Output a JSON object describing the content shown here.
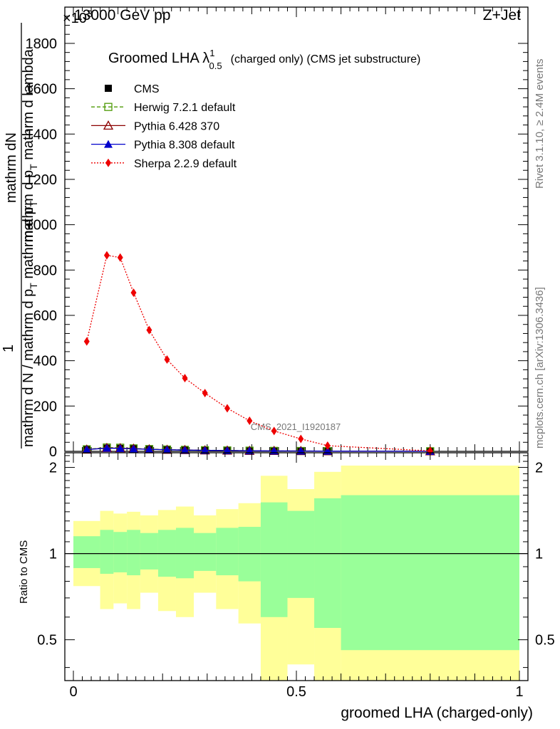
{
  "header": {
    "left": "13000 GeV pp",
    "right": "Z+Jet",
    "exponent": "×10",
    "exponent_power": "3"
  },
  "side_labels": {
    "rivet": "Rivet 3.1.10, ≥ 2.4M events",
    "mcplots": "mcplots.cern.ch [arXiv:1306.3436]"
  },
  "watermark": "CMS_2021_I1920187",
  "chart_data": [
    {
      "type": "line",
      "title": "Groomed LHA λ",
      "title_sup": "1",
      "title_sub": "0.5",
      "subtitle": "(charged only) (CMS jet substructure)",
      "ylabel_num": "mathrm dN",
      "ylabel_num2": "mathrm d p_T mathrm d lambda",
      "ylabel_num2_main": "mathrm d p",
      "ylabel_num2_sub": "T",
      "ylabel_num2_rest": " mathrm d lambda",
      "ylabel_one": "1",
      "ylabel_den": "mathrm d N / mathrm d p",
      "ylabel_den_sub": "T",
      "ylabel_den_rest": " mathrm d p",
      "ylabel_den_rest_sub": "T",
      "ylim": [
        0,
        1960
      ],
      "y_ticks": [
        "0",
        "200",
        "400",
        "600",
        "800",
        "1000",
        "1200",
        "1400",
        "1600",
        "1800"
      ],
      "y_tick_values": [
        0,
        200,
        400,
        600,
        800,
        1000,
        1200,
        1400,
        1600,
        1800
      ],
      "xlim": [
        0,
        1
      ],
      "x": [
        0.03,
        0.075,
        0.105,
        0.135,
        0.17,
        0.21,
        0.25,
        0.295,
        0.345,
        0.395,
        0.45,
        0.51,
        0.57,
        0.8
      ],
      "series": [
        {
          "name": "CMS",
          "color": "#000000",
          "marker": "square-filled",
          "line": "none",
          "values": [
            8,
            14,
            13,
            11,
            9,
            7,
            6,
            5,
            4,
            3,
            2,
            1.5,
            1,
            0.5
          ]
        },
        {
          "name": "Herwig 7.2.1 default",
          "color": "#4e9a06",
          "marker": "square-open",
          "line": "dashed",
          "values": [
            9,
            17,
            16,
            13,
            10,
            8,
            6.5,
            5,
            4,
            3,
            2,
            1.5,
            1,
            0.5
          ]
        },
        {
          "name": "Pythia 6.428 370",
          "color": "#8b0000",
          "marker": "triangle-open",
          "line": "solid",
          "values": [
            8,
            15,
            14,
            12,
            9,
            7,
            6,
            4.5,
            3.5,
            2.5,
            2,
            1.5,
            1,
            0.5
          ]
        },
        {
          "name": "Pythia 8.308 default",
          "color": "#0000cc",
          "marker": "triangle-filled",
          "line": "solid",
          "values": [
            8,
            14,
            13,
            11,
            9,
            7,
            5.5,
            4.5,
            3.5,
            2.5,
            2,
            1.5,
            1,
            0.5
          ]
        },
        {
          "name": "Sherpa 2.2.9 default",
          "color": "#ee0000",
          "marker": "diamond-filled",
          "line": "dotted",
          "values": [
            485,
            865,
            855,
            700,
            535,
            405,
            323,
            257,
            190,
            135,
            90,
            55,
            25,
            2
          ]
        }
      ]
    },
    {
      "type": "area",
      "ylabel": "Ratio to CMS",
      "xlabel": "groomed LHA (charged-only)",
      "ylim": [
        0.36,
        2.25
      ],
      "y_ticks": [
        "0.5",
        "1",
        "2"
      ],
      "y_tick_values": [
        0.5,
        1,
        2
      ],
      "x_ticks": [
        "0",
        "0.5",
        "1"
      ],
      "x_tick_values": [
        0,
        0.5,
        1
      ],
      "xlim": [
        0,
        1
      ],
      "bin_edges": [
        0,
        0.06,
        0.09,
        0.12,
        0.15,
        0.19,
        0.23,
        0.27,
        0.32,
        0.37,
        0.42,
        0.48,
        0.54,
        0.6,
        1.0
      ],
      "band_stat": {
        "color": "#99ff99",
        "upper": [
          1.15,
          1.21,
          1.19,
          1.21,
          1.18,
          1.21,
          1.23,
          1.18,
          1.23,
          1.24,
          1.51,
          1.41,
          1.56,
          1.6
        ],
        "lower": [
          0.89,
          0.85,
          0.86,
          0.84,
          0.88,
          0.83,
          0.82,
          0.87,
          0.84,
          0.8,
          0.6,
          0.7,
          0.55,
          0.46
        ]
      },
      "band_total": {
        "color": "#ffff99",
        "upper": [
          1.3,
          1.41,
          1.38,
          1.4,
          1.36,
          1.42,
          1.46,
          1.36,
          1.43,
          1.5,
          1.87,
          1.68,
          1.93,
          2.03
        ],
        "lower": [
          0.77,
          0.64,
          0.67,
          0.64,
          0.73,
          0.63,
          0.6,
          0.73,
          0.64,
          0.57,
          0.29,
          0.41,
          0.23,
          0.26
        ]
      },
      "reference_line": 1
    }
  ]
}
